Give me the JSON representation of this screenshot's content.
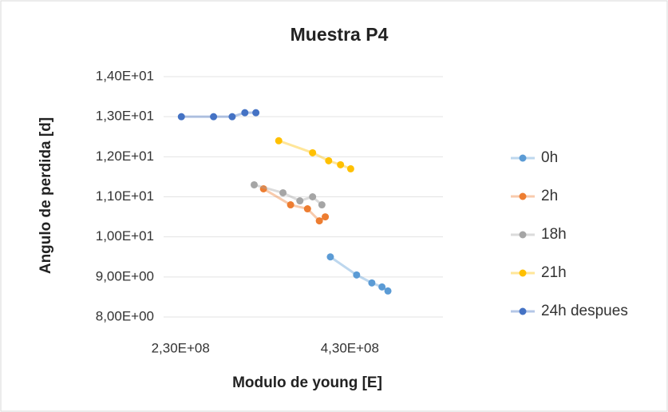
{
  "chart_data": {
    "type": "scatter",
    "title": "Muestra P4",
    "x_label": "Modulo de young [E]",
    "y_label": "Angulo de perdida [d]",
    "xlim": [
      210000000,
      540000000
    ],
    "xticks": [
      {
        "value": 230000000,
        "label": "2,30E+08"
      },
      {
        "value": 430000000,
        "label": "4,30E+08"
      }
    ],
    "ylim": [
      8,
      14
    ],
    "yticks": [
      {
        "value": 8,
        "label": "8,00E+00"
      },
      {
        "value": 9,
        "label": "9,00E+00"
      },
      {
        "value": 10,
        "label": "1,00E+01"
      },
      {
        "value": 11,
        "label": "1,10E+01"
      },
      {
        "value": 12,
        "label": "1,20E+01"
      },
      {
        "value": 13,
        "label": "1,30E+01"
      },
      {
        "value": 14,
        "label": "1,40E+01"
      }
    ],
    "grid": true,
    "legend": "right",
    "series": [
      {
        "name": "0h",
        "color": "#5b9bd5",
        "x": [
          407000000,
          438000000,
          456000000,
          468000000,
          475000000
        ],
        "values": [
          9.5,
          9.05,
          8.85,
          8.75,
          8.65
        ]
      },
      {
        "name": "2h",
        "color": "#ed7d31",
        "x": [
          328000000,
          360000000,
          380000000,
          394000000,
          401000000
        ],
        "values": [
          11.2,
          10.8,
          10.7,
          10.4,
          10.5
        ]
      },
      {
        "name": "18h",
        "color": "#a5a5a5",
        "x": [
          317000000,
          351000000,
          371000000,
          386000000,
          397000000
        ],
        "values": [
          11.3,
          11.1,
          10.9,
          11.0,
          10.8
        ]
      },
      {
        "name": "21h",
        "color": "#ffc000",
        "x": [
          346000000,
          386000000,
          405000000,
          419000000,
          431000000
        ],
        "values": [
          12.4,
          12.1,
          11.9,
          11.8,
          11.7
        ]
      },
      {
        "name": "24h despues",
        "color": "#4472c4",
        "x": [
          231000000,
          269000000,
          291000000,
          306000000,
          319000000
        ],
        "values": [
          13.0,
          13.0,
          13.0,
          13.1,
          13.1
        ]
      }
    ]
  }
}
